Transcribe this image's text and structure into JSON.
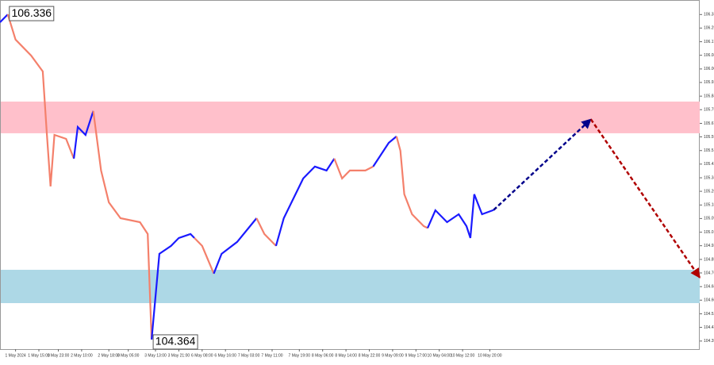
{
  "chart_data": {
    "type": "line",
    "xlim": [
      0,
      180
    ],
    "ylim": [
      104.306,
      106.423
    ],
    "yticks": [
      106.335,
      106.253,
      {
        "value": 106.17,
        "label": "106.170"
      },
      106.088,
      106.005,
      105.923,
      {
        "value": 105.84,
        "label": "105.840"
      },
      105.758,
      105.675,
      105.593,
      {
        "value": 105.51,
        "label": "105.510"
      },
      105.428,
      105.345,
      105.263,
      {
        "value": 105.18,
        "label": "105.180"
      },
      105.098,
      105.015,
      104.933,
      {
        "value": 104.85,
        "label": "104.850"
      },
      104.768,
      104.685,
      104.603,
      {
        "value": 104.52,
        "label": "104.520"
      },
      104.438,
      104.355
    ],
    "xticks": [
      {
        "value": 4,
        "label": "1 May 2024"
      },
      {
        "value": 10,
        "label": "1 May 15:00"
      },
      {
        "value": 15,
        "label": "1 May 23:00"
      },
      {
        "value": 21,
        "label": "2 May 10:00"
      },
      {
        "value": 28,
        "label": "2 May 18:00"
      },
      {
        "value": 33,
        "label": "3 May 05:00"
      },
      {
        "value": 40,
        "label": "3 May 13:00"
      },
      {
        "value": 46,
        "label": "3 May 21:00"
      },
      {
        "value": 52,
        "label": "6 May 08:00"
      },
      {
        "value": 58,
        "label": "6 May 16:00"
      },
      {
        "value": 64,
        "label": "7 May 03:00"
      },
      {
        "value": 70,
        "label": "7 May 11:00"
      },
      {
        "value": 77,
        "label": "7 May 19:00"
      },
      {
        "value": 83,
        "label": "8 May 06:00"
      },
      {
        "value": 89,
        "label": "8 May 14:00"
      },
      {
        "value": 95,
        "label": "8 May 22:00"
      },
      {
        "value": 101,
        "label": "9 May 09:00"
      },
      {
        "value": 107,
        "label": "9 May 17:00"
      },
      {
        "value": 113,
        "label": "10 May 04:00"
      },
      {
        "value": 119,
        "label": "10 May 12:00"
      },
      {
        "value": 126,
        "label": "10 May 20:00"
      }
    ],
    "zones": [
      {
        "from": 105.615,
        "to": 105.807,
        "color": "#ffc0cb"
      },
      {
        "from": 104.585,
        "to": 104.787,
        "color": "#add8e6"
      }
    ],
    "series": [
      {
        "color": "#1a1aff",
        "x": [
          0,
          2
        ],
        "values": [
          106.288,
          106.336
        ]
      },
      {
        "color": "#f4806b",
        "x": [
          2,
          4,
          8,
          11,
          12,
          13,
          14,
          17,
          19
        ],
        "values": [
          106.336,
          106.183,
          106.086,
          105.99,
          105.629,
          105.293,
          105.605,
          105.581,
          105.461
        ]
      },
      {
        "color": "#1a1aff",
        "x": [
          19,
          20,
          22,
          24
        ],
        "values": [
          105.461,
          105.653,
          105.605,
          105.75
        ]
      },
      {
        "color": "#f4806b",
        "x": [
          24,
          26,
          28,
          31,
          36,
          38,
          39
        ],
        "values": [
          105.75,
          105.389,
          105.196,
          105.1,
          105.076,
          105.004,
          104.364
        ]
      },
      {
        "color": "#1a1aff",
        "x": [
          39,
          41,
          44,
          46,
          49,
          50
        ],
        "values": [
          104.364,
          104.884,
          104.932,
          104.98,
          105.004,
          104.98
        ]
      },
      {
        "color": "#f4806b",
        "x": [
          50,
          52,
          55
        ],
        "values": [
          104.98,
          104.932,
          104.764
        ]
      },
      {
        "color": "#1a1aff",
        "x": [
          55,
          57,
          61,
          66
        ],
        "values": [
          104.764,
          104.884,
          104.956,
          105.1
        ]
      },
      {
        "color": "#f4806b",
        "x": [
          66,
          68,
          71
        ],
        "values": [
          105.1,
          105.004,
          104.932
        ]
      },
      {
        "color": "#1a1aff",
        "x": [
          71,
          73,
          78,
          81,
          84,
          86
        ],
        "values": [
          104.932,
          105.1,
          105.341,
          105.413,
          105.389,
          105.461
        ]
      },
      {
        "color": "#f4806b",
        "x": [
          86,
          88,
          90,
          94,
          96
        ],
        "values": [
          105.461,
          105.341,
          105.389,
          105.389,
          105.413
        ]
      },
      {
        "color": "#1a1aff",
        "x": [
          96,
          100,
          102
        ],
        "values": [
          105.413,
          105.557,
          105.596
        ]
      },
      {
        "color": "#f4806b",
        "x": [
          102,
          103,
          104,
          106,
          109,
          110
        ],
        "values": [
          105.596,
          105.509,
          105.245,
          105.124,
          105.052,
          105.04
        ]
      },
      {
        "color": "#1a1aff",
        "x": [
          110,
          112,
          115,
          118,
          120,
          121,
          122,
          124,
          127
        ],
        "values": [
          105.04,
          105.148,
          105.076,
          105.124,
          105.052,
          104.98,
          105.245,
          105.124,
          105.15
        ]
      }
    ],
    "forecast": [
      {
        "color": "#00008b",
        "x": [
          127,
          152
        ],
        "values": [
          105.15,
          105.7
        ]
      },
      {
        "color": "#b00000",
        "x": [
          152,
          180
        ],
        "values": [
          105.7,
          104.74
        ]
      }
    ],
    "annotations": [
      {
        "text": "106.336",
        "x": 2,
        "y": 106.336
      },
      {
        "text": "104.364",
        "x": 39,
        "y": 104.364
      }
    ]
  }
}
